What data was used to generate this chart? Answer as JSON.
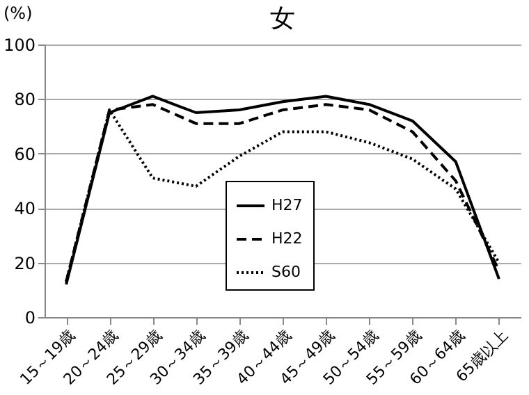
{
  "chart_data": {
    "type": "line",
    "title": "女",
    "ylabel": "(%)",
    "categories": [
      "15～19歳",
      "20～24歳",
      "25～29歳",
      "30～34歳",
      "35～39歳",
      "40～44歳",
      "45～49歳",
      "50～54歳",
      "55～59歳",
      "60～64歳",
      "65歳以上"
    ],
    "series": [
      {
        "name": "H27",
        "color": "#000000",
        "line_style": "solid",
        "values": [
          12,
          75,
          81,
          75,
          76,
          79,
          81,
          78,
          72,
          57,
          14
        ]
      },
      {
        "name": "H22",
        "color": "#000000",
        "line_style": "dashed",
        "values": [
          13,
          76,
          78,
          71,
          71,
          76,
          78,
          76,
          68,
          50,
          17
        ]
      },
      {
        "name": "S60",
        "color": "#000000",
        "line_style": "dotted",
        "values": [
          13,
          76,
          51,
          48,
          59,
          68,
          68,
          64,
          58,
          47,
          20
        ]
      }
    ],
    "ylim": [
      0,
      100
    ],
    "yticks": [
      0,
      20,
      40,
      60,
      80,
      100
    ],
    "grid": "y",
    "legend": "bottom",
    "marker": "none"
  }
}
